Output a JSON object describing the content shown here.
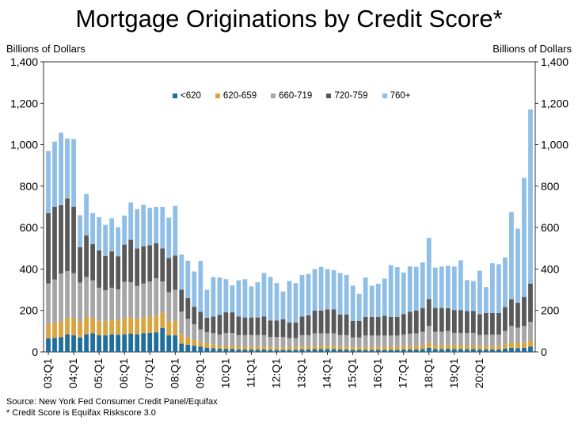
{
  "header": {
    "title": "Mortgage Originations by Credit Score*",
    "left_unit": "Billions of Dollars",
    "right_unit": "Billions of Dollars"
  },
  "footnotes": {
    "source": "Source: New York Fed Consumer Credit Panel/Equifax",
    "note": "* Credit Score is Equifax Riskscore 3.0"
  },
  "chart_data": {
    "type": "bar",
    "stacked": true,
    "ylim": [
      0,
      1400
    ],
    "yticks": [
      "0",
      "200",
      "400",
      "600",
      "800",
      "1,000",
      "1,200",
      "1,400"
    ],
    "ytick_values": [
      0,
      200,
      400,
      600,
      800,
      1000,
      1200,
      1400
    ],
    "xtick_labels": [
      "03:Q1",
      "04:Q1",
      "05:Q1",
      "06:Q1",
      "07:Q1",
      "08:Q1",
      "09:Q1",
      "10:Q1",
      "11:Q1",
      "12:Q1",
      "13:Q1",
      "14:Q1",
      "15:Q1",
      "16:Q1",
      "17:Q1",
      "18:Q1",
      "19:Q1",
      "20:Q1"
    ],
    "xtick_every": 4,
    "legend_position": "top-center",
    "series": [
      {
        "name": "<620",
        "color": "#1f6e9c",
        "values": [
          65,
          68,
          72,
          85,
          80,
          70,
          85,
          90,
          80,
          80,
          85,
          82,
          85,
          88,
          85,
          90,
          92,
          95,
          115,
          80,
          80,
          40,
          35,
          30,
          25,
          20,
          18,
          15,
          15,
          15,
          12,
          12,
          12,
          12,
          12,
          10,
          10,
          10,
          10,
          10,
          12,
          12,
          14,
          14,
          14,
          14,
          12,
          12,
          10,
          10,
          10,
          10,
          10,
          10,
          10,
          10,
          12,
          12,
          12,
          14,
          20,
          14,
          14,
          16,
          14,
          14,
          14,
          14,
          12,
          12,
          12,
          12,
          16,
          20,
          18,
          20,
          25
        ]
      },
      {
        "name": "620-659",
        "color": "#d9a540",
        "values": [
          70,
          72,
          76,
          80,
          85,
          75,
          82,
          75,
          70,
          68,
          70,
          70,
          78,
          78,
          74,
          75,
          78,
          80,
          75,
          68,
          70,
          45,
          35,
          28,
          24,
          20,
          18,
          14,
          16,
          16,
          14,
          14,
          14,
          14,
          14,
          12,
          12,
          12,
          12,
          12,
          14,
          14,
          16,
          16,
          16,
          16,
          14,
          14,
          12,
          12,
          14,
          14,
          14,
          14,
          14,
          14,
          16,
          16,
          18,
          18,
          25,
          18,
          18,
          20,
          18,
          18,
          18,
          18,
          15,
          16,
          16,
          16,
          20,
          25,
          24,
          25,
          30
        ]
      },
      {
        "name": "660-719",
        "color": "#a6a6a6",
        "values": [
          195,
          210,
          230,
          225,
          215,
          190,
          195,
          180,
          160,
          150,
          155,
          150,
          175,
          170,
          160,
          165,
          170,
          180,
          150,
          140,
          150,
          110,
          90,
          75,
          60,
          55,
          55,
          55,
          60,
          60,
          55,
          55,
          55,
          55,
          55,
          50,
          50,
          50,
          45,
          45,
          55,
          55,
          60,
          60,
          60,
          60,
          55,
          55,
          48,
          48,
          55,
          55,
          55,
          55,
          55,
          55,
          55,
          60,
          60,
          65,
          80,
          65,
          65,
          65,
          60,
          60,
          60,
          60,
          55,
          55,
          55,
          55,
          65,
          80,
          75,
          80,
          90
        ]
      },
      {
        "name": "720-759",
        "color": "#595959",
        "values": [
          340,
          350,
          330,
          350,
          320,
          170,
          200,
          175,
          180,
          165,
          175,
          160,
          180,
          205,
          180,
          180,
          175,
          170,
          160,
          165,
          165,
          105,
          100,
          85,
          85,
          70,
          80,
          95,
          100,
          100,
          90,
          85,
          85,
          85,
          90,
          80,
          80,
          85,
          75,
          75,
          90,
          95,
          110,
          110,
          115,
          115,
          100,
          100,
          80,
          80,
          90,
          90,
          90,
          95,
          90,
          90,
          100,
          105,
          110,
          115,
          130,
          115,
          115,
          110,
          110,
          110,
          105,
          105,
          100,
          105,
          105,
          105,
          115,
          130,
          120,
          140,
          185
        ]
      },
      {
        "name": "760+",
        "color": "#8fbfe6",
        "values": [
          300,
          315,
          350,
          290,
          327,
          155,
          200,
          150,
          160,
          150,
          160,
          140,
          140,
          180,
          190,
          200,
          180,
          175,
          200,
          195,
          240,
          170,
          180,
          170,
          245,
          135,
          190,
          180,
          160,
          130,
          175,
          185,
          150,
          170,
          210,
          210,
          180,
          135,
          200,
          190,
          200,
          200,
          200,
          210,
          195,
          190,
          200,
          190,
          170,
          130,
          190,
          150,
          160,
          180,
          250,
          240,
          200,
          220,
          210,
          220,
          295,
          195,
          200,
          205,
          210,
          240,
          150,
          145,
          210,
          125,
          240,
          235,
          240,
          420,
          358,
          575,
          840
        ]
      }
    ]
  }
}
